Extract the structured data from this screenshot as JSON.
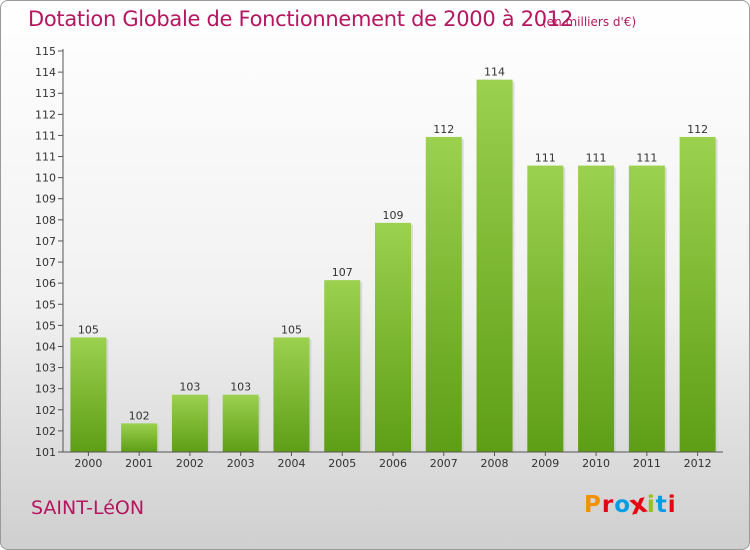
{
  "header": {
    "title": "Dotation Globale de Fonctionnement de 2000 à 2012",
    "unit": "(en milliers d'€)"
  },
  "footer": {
    "commune": "SAINT-LéON",
    "logo_text": "Proxiti",
    "logo_colors": [
      "#f39200",
      "#e30613",
      "#009fe3",
      "#e30613",
      "#95c11f",
      "#009fe3",
      "#e30613"
    ]
  },
  "chart_data": {
    "type": "bar",
    "title": "Dotation Globale de Fonctionnement de 2000 à 2012",
    "unit": "(en milliers d'€)",
    "categories": [
      "2000",
      "2001",
      "2002",
      "2003",
      "2004",
      "2005",
      "2006",
      "2007",
      "2008",
      "2009",
      "2010",
      "2011",
      "2012"
    ],
    "values": [
      105,
      102,
      103,
      103,
      105,
      107,
      109,
      112,
      114,
      111,
      111,
      111,
      112
    ],
    "bar_positions": [
      105,
      102,
      103,
      103,
      105,
      107,
      109,
      112,
      114,
      111,
      111,
      111,
      112
    ],
    "yticks": [
      "101",
      "102",
      "102",
      "103",
      "103",
      "104",
      "105",
      "105",
      "106",
      "107",
      "107",
      "108",
      "109",
      "110",
      "111",
      "111",
      "112",
      "113",
      "114",
      "115"
    ],
    "ylim": [
      101,
      115
    ],
    "grid": false,
    "colors": {
      "bar_top": "#9bd14f",
      "bar_bottom": "#5e9e16",
      "axis": "#555555"
    }
  }
}
